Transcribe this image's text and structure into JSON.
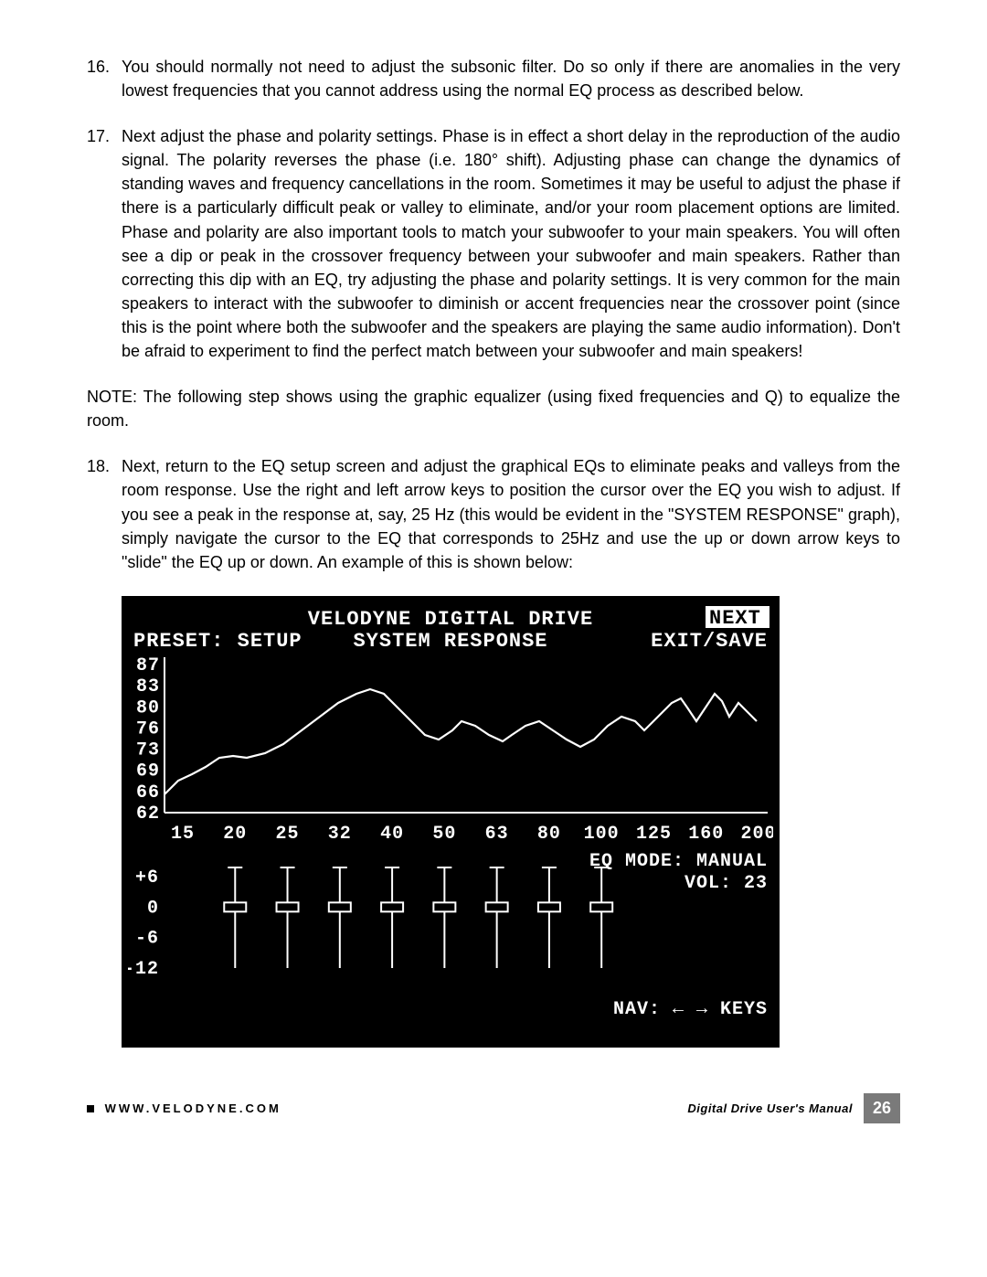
{
  "items": [
    {
      "num": "16.",
      "text": "You should normally not need to adjust the subsonic filter.  Do so only if there are anomalies in the very lowest frequencies that you cannot address using the normal EQ process as described below."
    },
    {
      "num": "17.",
      "text": "Next adjust the phase and polarity settings.  Phase is in effect a short delay in the reproduction of the audio signal.  The polarity reverses the phase (i.e. 180° shift).  Adjusting phase can change the dynamics of standing waves and frequency cancellations in the room.  Sometimes it may be useful to adjust the phase if there is a particularly difficult peak or valley to eliminate, and/or your room placement options are limited.  Phase and polarity are also important tools to match your subwoofer to your main speakers.  You will often see a dip or peak in the crossover frequency between your subwoofer and main speakers.  Rather than correcting this dip with an EQ, try adjusting the phase and polarity settings.  It is very common for the main speakers to interact with the subwoofer to diminish or accent frequencies near the crossover point (since this is the point where both the subwoofer and the speakers are playing the same audio information).  Don't be afraid to experiment to find the perfect match between your subwoofer and main speakers!"
    }
  ],
  "note": "NOTE: The following step shows using the graphic equalizer (using fixed frequencies and Q) to equalize the room.",
  "item18": {
    "num": "18.",
    "text": "Next, return to the EQ setup screen and adjust the graphical EQs to eliminate peaks and valleys from the room response.  Use the right and left arrow keys to position the cursor over the EQ you wish to adjust.  If you see a peak in the response at, say, 25 Hz (this would be evident in the \"SYSTEM RESPONSE\" graph), simply navigate the cursor to the EQ that corresponds to 25Hz and use the up or down arrow keys to \"slide\" the EQ up or down.  An example of this is shown below:"
  },
  "graph": {
    "title1": "VELODYNE DIGITAL DRIVE",
    "title2": "SYSTEM RESPONSE",
    "preset_label": "PRESET: SETUP",
    "next_label": "NEXT",
    "exit_label": "EXIT/SAVE",
    "y_ticks": [
      "87",
      "83",
      "80",
      "76",
      "73",
      "69",
      "66",
      "62"
    ],
    "x_ticks": [
      "15",
      "20",
      "25",
      "32",
      "40",
      "50",
      "63",
      "80",
      "100",
      "125",
      "160",
      "200"
    ],
    "eq_mode": "EQ MODE: MANUAL",
    "vol": "VOL: 23",
    "slider_y_ticks": [
      "+6",
      "0",
      "-6",
      "-12"
    ],
    "nav": "NAV: ← → KEYS",
    "line_color": "#ffffff",
    "bg_color": "#000000",
    "num_sliders": 8,
    "response_points": [
      [
        40,
        210
      ],
      [
        55,
        195
      ],
      [
        70,
        188
      ],
      [
        85,
        180
      ],
      [
        100,
        170
      ],
      [
        115,
        168
      ],
      [
        130,
        170
      ],
      [
        150,
        165
      ],
      [
        170,
        155
      ],
      [
        190,
        140
      ],
      [
        210,
        125
      ],
      [
        230,
        110
      ],
      [
        250,
        100
      ],
      [
        265,
        95
      ],
      [
        280,
        100
      ],
      [
        295,
        115
      ],
      [
        310,
        130
      ],
      [
        325,
        145
      ],
      [
        340,
        150
      ],
      [
        355,
        140
      ],
      [
        365,
        130
      ],
      [
        380,
        135
      ],
      [
        395,
        145
      ],
      [
        410,
        152
      ],
      [
        420,
        145
      ],
      [
        435,
        135
      ],
      [
        450,
        130
      ],
      [
        465,
        140
      ],
      [
        480,
        150
      ],
      [
        495,
        158
      ],
      [
        510,
        150
      ],
      [
        525,
        135
      ],
      [
        540,
        125
      ],
      [
        555,
        130
      ],
      [
        565,
        140
      ],
      [
        580,
        125
      ],
      [
        595,
        110
      ],
      [
        605,
        105
      ],
      [
        612,
        115
      ],
      [
        622,
        130
      ],
      [
        632,
        115
      ],
      [
        642,
        100
      ],
      [
        650,
        108
      ],
      [
        658,
        125
      ],
      [
        668,
        110
      ],
      [
        678,
        120
      ],
      [
        688,
        130
      ]
    ]
  },
  "footer": {
    "url": "WWW.VELODYNE.COM",
    "label": "Digital Drive User's Manual",
    "page": "26"
  }
}
